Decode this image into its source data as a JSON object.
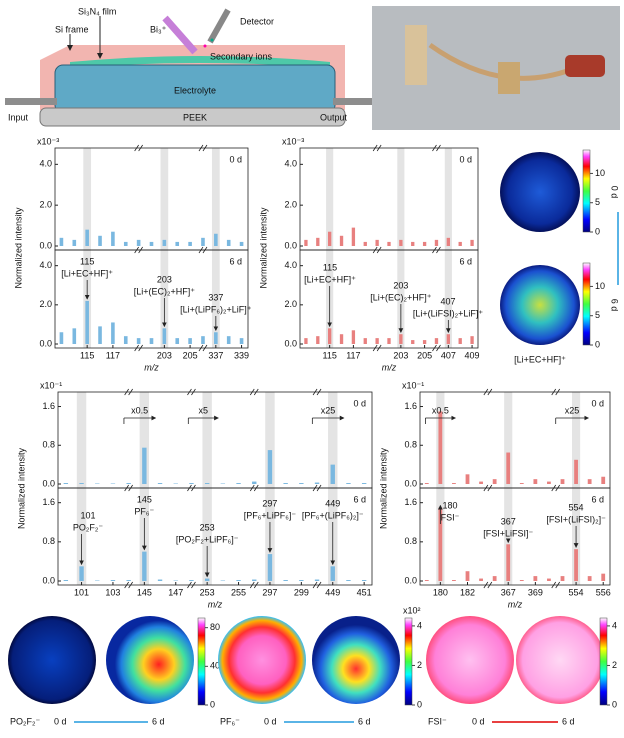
{
  "schematic": {
    "frame": "Si frame",
    "film": "Si₃N₄ film",
    "beam": "Bi₃⁺",
    "detector": "Detector",
    "ions": "Secondary ions",
    "electrolyte": "Electrolyte",
    "base": "PEEK",
    "input": "Input",
    "output": "Output"
  },
  "chart_data": [
    {
      "type": "bar",
      "ylabel": "Normalized intensity",
      "xlabel": "m/z",
      "scale": "x10⁻³",
      "color": "#7ab8e0",
      "ylim": [
        0,
        4.8
      ],
      "yticks": [
        {
          "value": 0,
          "label": "0.0"
        },
        {
          "value": 2,
          "label": "2.0"
        },
        {
          "value": 4,
          "label": "4.0"
        }
      ],
      "categories": [
        null,
        null,
        "115",
        null,
        "117",
        null,
        null,
        null,
        "203",
        null,
        "205",
        null,
        "337",
        null,
        "339"
      ],
      "series": [
        {
          "name": "0 d",
          "values": [
            0.4,
            0.3,
            0.8,
            0.5,
            0.7,
            0.2,
            0.3,
            0.2,
            0.3,
            0.2,
            0.2,
            0.4,
            0.6,
            0.3,
            0.2
          ]
        },
        {
          "name": "6 d",
          "values": [
            0.6,
            0.8,
            2.2,
            0.9,
            1.1,
            0.4,
            0.3,
            0.3,
            0.8,
            0.3,
            0.3,
            0.4,
            0.6,
            0.4,
            0.3
          ]
        }
      ],
      "annotations": [
        {
          "mass": "115",
          "text": "[Li+EC+HF]⁺"
        },
        {
          "mass": "203",
          "text": "[Li+(EC)₂+HF]⁺"
        },
        {
          "mass": "337",
          "text": "[Li+(LiPF₆)₂+LiF]⁺"
        }
      ],
      "multipliers": []
    },
    {
      "type": "bar",
      "ylabel": "Normalized intensity",
      "xlabel": "m/z",
      "scale": "x10⁻³",
      "color": "#e8807f",
      "ylim": [
        0,
        4.8
      ],
      "yticks": [
        {
          "value": 0,
          "label": "0.0"
        },
        {
          "value": 2,
          "label": "2.0"
        },
        {
          "value": 4,
          "label": "4.0"
        }
      ],
      "categories": [
        null,
        null,
        "115",
        null,
        "117",
        null,
        null,
        null,
        "203",
        null,
        "205",
        null,
        "407",
        null,
        "409"
      ],
      "series": [
        {
          "name": "0 d",
          "values": [
            0.3,
            0.4,
            0.7,
            0.5,
            0.9,
            0.2,
            0.3,
            0.2,
            0.3,
            0.2,
            0.2,
            0.3,
            0.4,
            0.2,
            0.3
          ]
        },
        {
          "name": "6 d",
          "values": [
            0.3,
            0.4,
            0.8,
            0.5,
            0.7,
            0.3,
            0.3,
            0.3,
            0.5,
            0.2,
            0.2,
            0.3,
            0.5,
            0.3,
            0.4
          ]
        }
      ],
      "annotations": [
        {
          "mass": "115",
          "text": "[Li+EC+HF]⁺"
        },
        {
          "mass": "203",
          "text": "[Li+(EC)₂+HF]⁺"
        },
        {
          "mass": "407",
          "text": "[Li+(LiFSI)₂+LiF]⁺"
        }
      ],
      "multipliers": []
    },
    {
      "type": "bar",
      "ylabel": "Normalized intensity",
      "xlabel": "m/z",
      "scale": "x10⁻¹",
      "color": "#7ab8e0",
      "ylim": [
        0,
        1.9
      ],
      "yticks": [
        {
          "value": 0,
          "label": "0.0"
        },
        0.8,
        1.6
      ],
      "categories": [
        null,
        "101",
        null,
        "103",
        null,
        "145",
        null,
        "147",
        null,
        "253",
        null,
        "255",
        null,
        "297",
        null,
        "299",
        null,
        "449",
        null,
        "451"
      ],
      "series": [
        {
          "name": "0 d",
          "values": [
            0.02,
            0.02,
            0.01,
            0.01,
            0.02,
            0.75,
            0.02,
            0.01,
            0.02,
            0.02,
            0.01,
            0.02,
            0.05,
            0.7,
            0.02,
            0.02,
            0.03,
            0.4,
            0.02,
            0.02
          ]
        },
        {
          "name": "6 d",
          "values": [
            0.02,
            0.3,
            0.01,
            0.02,
            0.02,
            0.6,
            0.03,
            0.01,
            0.02,
            0.05,
            0.01,
            0.02,
            0.03,
            0.55,
            0.02,
            0.02,
            0.03,
            0.3,
            0.02,
            0.02
          ]
        }
      ],
      "annotations": [
        {
          "mass": "101",
          "text": "PO₂F₂⁻"
        },
        {
          "mass": "145",
          "text": "PF₆⁻"
        },
        {
          "mass": "253",
          "text": "[PO₂F₂+LiPF₆]⁻"
        },
        {
          "mass": "297",
          "text": "[PF₆+LiPF₆]⁻"
        },
        {
          "mass": "449",
          "text": "[PF₆+(LiPF₆)₂]⁻"
        }
      ],
      "multipliers": [
        "x0.5",
        "x5",
        "x25"
      ]
    },
    {
      "type": "bar",
      "ylabel": "Normalized intensity",
      "xlabel": "m/z",
      "scale": "x10⁻¹",
      "color": "#e8807f",
      "ylim": [
        0,
        1.9
      ],
      "yticks": [
        {
          "value": 0,
          "label": "0.0"
        },
        0.8,
        1.6
      ],
      "categories": [
        null,
        "180",
        null,
        "182",
        null,
        null,
        "367",
        null,
        "369",
        null,
        null,
        "554",
        null,
        "556"
      ],
      "series": [
        {
          "name": "0 d",
          "values": [
            0.02,
            1.5,
            0.02,
            0.2,
            0.05,
            0.1,
            0.65,
            0.02,
            0.1,
            0.05,
            0.1,
            0.5,
            0.1,
            0.15
          ]
        },
        {
          "name": "6 d",
          "values": [
            0.02,
            1.5,
            0.02,
            0.2,
            0.05,
            0.1,
            0.75,
            0.02,
            0.1,
            0.05,
            0.1,
            0.65,
            0.1,
            0.15
          ]
        }
      ],
      "annotations": [
        {
          "mass": "180",
          "text": "FSI⁻"
        },
        {
          "mass": "367",
          "text": "[FSI+LiFSI]⁻"
        },
        {
          "mass": "554",
          "text": "[FSI+(LiFSI)₂]⁻"
        }
      ],
      "multipliers": [
        "x0.5",
        "x25"
      ]
    }
  ],
  "images": [
    {
      "caption": "[Li+EC+HF]⁺",
      "from": "0 d",
      "to": "6 d",
      "colorbar": {
        "lim": [
          0,
          14
        ],
        "ticks": [
          0,
          5,
          10
        ]
      }
    },
    {
      "caption": "PO₂F₂⁻",
      "from": "0 d",
      "to": "6 d",
      "colorbar": {
        "lim": [
          0,
          90
        ],
        "ticks": [
          0,
          40,
          80
        ]
      }
    },
    {
      "caption": "PF₆⁻",
      "from": "0 d",
      "to": "6 d",
      "colorbar": {
        "scale": "x10²",
        "lim": [
          0,
          4.4
        ],
        "ticks": [
          0,
          2,
          4
        ]
      }
    },
    {
      "caption": "FSI⁻",
      "from": "0 d",
      "to": "6 d",
      "colorbar": {
        "lim": [
          0,
          4.4
        ],
        "ticks": [
          0,
          2,
          4
        ]
      }
    }
  ]
}
